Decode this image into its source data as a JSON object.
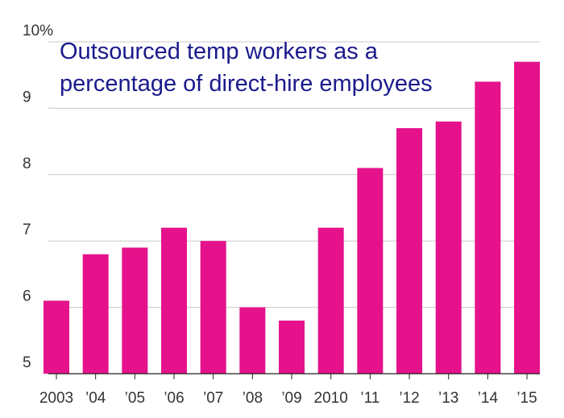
{
  "chart_data": {
    "type": "bar",
    "title_lines": [
      "Outsourced temp workers as a",
      "percentage of direct-hire employees"
    ],
    "categories": [
      "2003",
      "’04",
      "’05",
      "’06",
      "’07",
      "’08",
      "’09",
      "2010",
      "’11",
      "’12",
      "’13",
      "’14",
      "’15"
    ],
    "values": [
      6.1,
      6.8,
      6.9,
      7.2,
      7.0,
      6.0,
      5.8,
      7.2,
      8.1,
      8.7,
      8.8,
      9.4,
      9.7
    ],
    "y_ticks": [
      5,
      6,
      7,
      8,
      9,
      10
    ],
    "y_tick_labels": [
      "5",
      "6",
      "7",
      "8",
      "9",
      "10%"
    ],
    "ylim": [
      5,
      10
    ],
    "grid": true,
    "bar_color": "#e5128b",
    "title_color": "#1a1a8c"
  }
}
